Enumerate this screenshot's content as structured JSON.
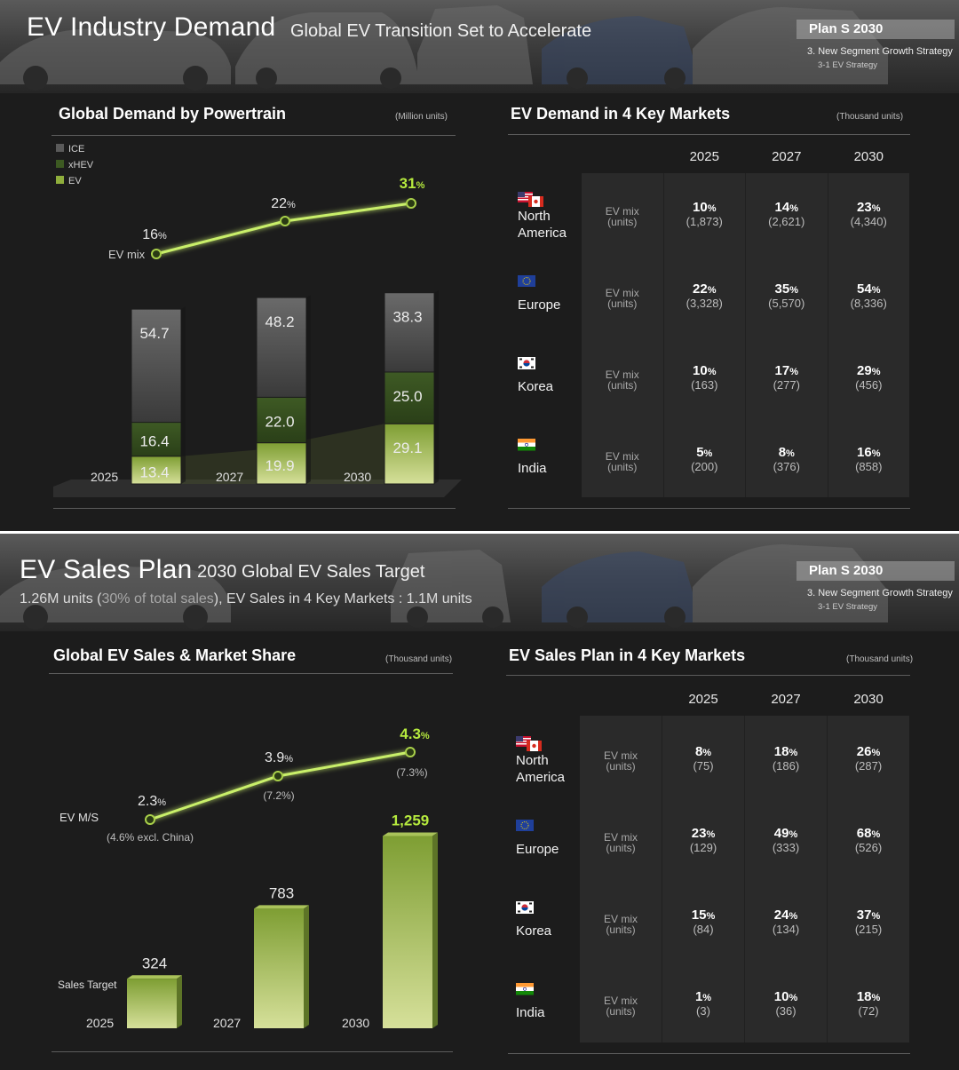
{
  "slide1": {
    "title": "EV Industry Demand",
    "subtitle": "Global EV Transition Set to Accelerate",
    "badge": {
      "name": "Plan S 2030",
      "line1": "3. New Segment Growth Strategy",
      "line2": "3-1 EV Strategy"
    },
    "left_panel": {
      "title": "Global Demand by Powertrain",
      "unit": "(Million units)"
    },
    "right_panel": {
      "title": "EV Demand in 4 Key Markets",
      "unit": "(Thousand units)"
    }
  },
  "slide2": {
    "title": "EV Sales Plan",
    "subtitle": "2030 Global EV Sales Target",
    "subline_a": "1.26M units (",
    "subline_b": "30% of total sales",
    "subline_c": "), EV Sales in 4 Key Markets : 1.1M units",
    "badge": {
      "name": "Plan S 2030",
      "line1": "3. New Segment Growth Strategy",
      "line2": "3-1 EV Strategy"
    },
    "left_panel": {
      "title": "Global EV Sales & Market Share",
      "unit": "(Thousand units)"
    },
    "right_panel": {
      "title": "EV Sales Plan in 4 Key Markets",
      "unit": "(Thousand units)"
    }
  },
  "chart_data": [
    {
      "type": "bar",
      "stacked": true,
      "title": "Global Demand by Powertrain",
      "unit": "(Million units)",
      "categories": [
        "2025",
        "2027",
        "2030"
      ],
      "series": [
        {
          "name": "EV",
          "values": [
            13.4,
            19.9,
            29.1
          ],
          "color": "#8fae3c"
        },
        {
          "name": "xHEV",
          "values": [
            16.4,
            22.0,
            25.0
          ],
          "color": "#3d5a22"
        },
        {
          "name": "ICE",
          "values": [
            54.7,
            48.2,
            38.3
          ],
          "color": "#5a5a5a"
        }
      ],
      "line": {
        "label": "EV mix",
        "values": [
          "16%",
          "22%",
          "31%"
        ]
      },
      "legend": [
        "ICE",
        "xHEV",
        "EV"
      ],
      "legend_placement": "top-left"
    },
    {
      "type": "table",
      "title": "EV Demand in 4 Key Markets",
      "unit": "(Thousand units)",
      "columns": [
        "2025",
        "2027",
        "2030"
      ],
      "row_label": [
        "EV mix",
        "(units)"
      ],
      "rows": [
        {
          "market": [
            "North",
            "America"
          ],
          "flag": "us-canada-flag-icon",
          "pct": [
            "10%",
            "14%",
            "23%"
          ],
          "units": [
            "(1,873)",
            "(2,621)",
            "(4,340)"
          ]
        },
        {
          "market": [
            "Europe"
          ],
          "flag": "eu-flag-icon",
          "pct": [
            "22%",
            "35%",
            "54%"
          ],
          "units": [
            "(3,328)",
            "(5,570)",
            "(8,336)"
          ]
        },
        {
          "market": [
            "Korea"
          ],
          "flag": "korea-flag-icon",
          "pct": [
            "10%",
            "17%",
            "29%"
          ],
          "units": [
            "(163)",
            "(277)",
            "(456)"
          ]
        },
        {
          "market": [
            "India"
          ],
          "flag": "india-flag-icon",
          "pct": [
            "5%",
            "8%",
            "16%"
          ],
          "units": [
            "(200)",
            "(376)",
            "(858)"
          ]
        }
      ]
    },
    {
      "type": "bar",
      "title": "Global EV Sales & Market Share",
      "unit": "(Thousand units)",
      "categories": [
        "2025",
        "2027",
        "2030"
      ],
      "series": [
        {
          "name": "Sales Target",
          "values": [
            324,
            783,
            1259
          ]
        }
      ],
      "value_labels": [
        "324",
        "783",
        "1,259"
      ],
      "line": {
        "label": "EV M/S",
        "values": [
          "2.3%",
          "3.9%",
          "4.3%"
        ],
        "notes": [
          "(4.6% excl. China)",
          "(7.2%)",
          "(7.3%)"
        ]
      }
    },
    {
      "type": "table",
      "title": "EV Sales Plan in 4 Key Markets",
      "unit": "(Thousand units)",
      "columns": [
        "2025",
        "2027",
        "2030"
      ],
      "row_label": [
        "EV mix",
        "(units)"
      ],
      "rows": [
        {
          "market": [
            "North",
            "America"
          ],
          "flag": "us-canada-flag-icon",
          "pct": [
            "8%",
            "18%",
            "26%"
          ],
          "units": [
            "(75)",
            "(186)",
            "(287)"
          ]
        },
        {
          "market": [
            "Europe"
          ],
          "flag": "eu-flag-icon",
          "pct": [
            "23%",
            "49%",
            "68%"
          ],
          "units": [
            "(129)",
            "(333)",
            "(526)"
          ]
        },
        {
          "market": [
            "Korea"
          ],
          "flag": "korea-flag-icon",
          "pct": [
            "15%",
            "24%",
            "37%"
          ],
          "units": [
            "(84)",
            "(134)",
            "(215)"
          ]
        },
        {
          "market": [
            "India"
          ],
          "flag": "india-flag-icon",
          "pct": [
            "1%",
            "10%",
            "18%"
          ],
          "units": [
            "(3)",
            "(36)",
            "(72)"
          ]
        }
      ]
    }
  ]
}
